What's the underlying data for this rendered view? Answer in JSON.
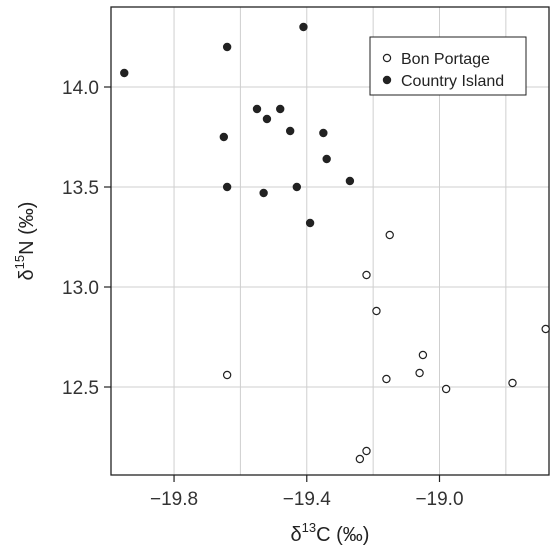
{
  "chart_data": {
    "type": "scatter",
    "title": "",
    "xlabel": {
      "prefix": "δ",
      "sup": "13",
      "suffix": "C (‰)"
    },
    "ylabel": {
      "prefix": "δ",
      "sup": "15",
      "suffix": "N (‰)"
    },
    "xlim": [
      -19.99,
      -18.67
    ],
    "ylim": [
      12.06,
      14.4
    ],
    "xticks": [
      -19.8,
      -19.4,
      -19.0
    ],
    "xtick_labels": [
      "−19.8",
      "−19.4",
      "−19.0"
    ],
    "yticks": [
      12.5,
      13.0,
      13.5,
      14.0
    ],
    "ytick_labels": [
      "12.5",
      "13.0",
      "13.5",
      "14.0"
    ],
    "x_gridlines": [
      -19.8,
      -19.6,
      -19.4,
      -19.2,
      -19.0,
      -18.8
    ],
    "y_gridlines": [
      12.5,
      13.0,
      13.5,
      14.0
    ],
    "grid": true,
    "legend_position": "top-right",
    "series": [
      {
        "name": "Bon Portage",
        "marker": "open-circle",
        "color": "#222222",
        "x": [
          -19.15,
          -19.22,
          -19.19,
          -19.05,
          -19.06,
          -19.16,
          -18.98,
          -18.78,
          -18.68,
          -19.64,
          -19.22,
          -19.24
        ],
        "y": [
          13.26,
          13.06,
          12.88,
          12.66,
          12.57,
          12.54,
          12.49,
          12.52,
          12.79,
          12.56,
          12.18,
          12.14
        ]
      },
      {
        "name": "Country Island",
        "marker": "filled-circle",
        "color": "#222222",
        "x": [
          -19.95,
          -19.41,
          -19.64,
          -19.55,
          -19.48,
          -19.52,
          -19.45,
          -19.35,
          -19.65,
          -19.34,
          -19.27,
          -19.64,
          -19.53,
          -19.43,
          -19.39
        ],
        "y": [
          14.07,
          14.3,
          14.2,
          13.89,
          13.89,
          13.84,
          13.78,
          13.77,
          13.75,
          13.64,
          13.53,
          13.5,
          13.47,
          13.5,
          13.32
        ]
      }
    ]
  }
}
